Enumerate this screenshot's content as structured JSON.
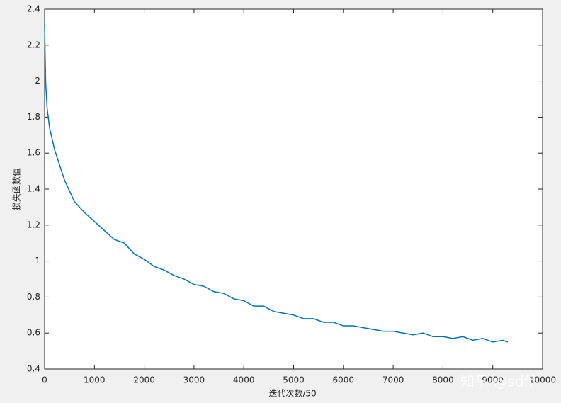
{
  "chart_data": {
    "type": "line",
    "xlabel": "迭代次数/50",
    "ylabel": "损失函数值",
    "watermark": "知乎 @sdff",
    "x": [
      0,
      20,
      50,
      100,
      200,
      400,
      600,
      800,
      1000,
      1200,
      1400,
      1600,
      1800,
      2000,
      2200,
      2400,
      2600,
      2800,
      3000,
      3200,
      3400,
      3600,
      3800,
      4000,
      4200,
      4400,
      4600,
      4800,
      5000,
      5200,
      5400,
      5600,
      5800,
      6000,
      6200,
      6400,
      6600,
      6800,
      7000,
      7200,
      7400,
      7600,
      7800,
      8000,
      8200,
      8400,
      8600,
      8800,
      9000,
      9200,
      9300
    ],
    "series": [
      {
        "color": "#0072bd",
        "values": [
          2.32,
          2.0,
          1.85,
          1.74,
          1.62,
          1.45,
          1.33,
          1.27,
          1.22,
          1.17,
          1.12,
          1.1,
          1.04,
          1.01,
          0.97,
          0.95,
          0.92,
          0.9,
          0.87,
          0.86,
          0.83,
          0.82,
          0.79,
          0.78,
          0.75,
          0.75,
          0.72,
          0.71,
          0.7,
          0.68,
          0.68,
          0.66,
          0.66,
          0.64,
          0.64,
          0.63,
          0.62,
          0.61,
          0.61,
          0.6,
          0.59,
          0.6,
          0.58,
          0.58,
          0.57,
          0.58,
          0.56,
          0.57,
          0.55,
          0.56,
          0.55
        ]
      }
    ],
    "xlim": [
      0,
      10000
    ],
    "xticks": [
      0,
      1000,
      2000,
      3000,
      4000,
      5000,
      6000,
      7000,
      8000,
      9000,
      10000
    ],
    "ylim": [
      0.4,
      2.4
    ],
    "yticks": [
      0.4,
      0.6,
      0.8,
      1,
      1.2,
      1.4,
      1.6,
      1.8,
      2,
      2.2,
      2.4
    ],
    "grid": false
  }
}
